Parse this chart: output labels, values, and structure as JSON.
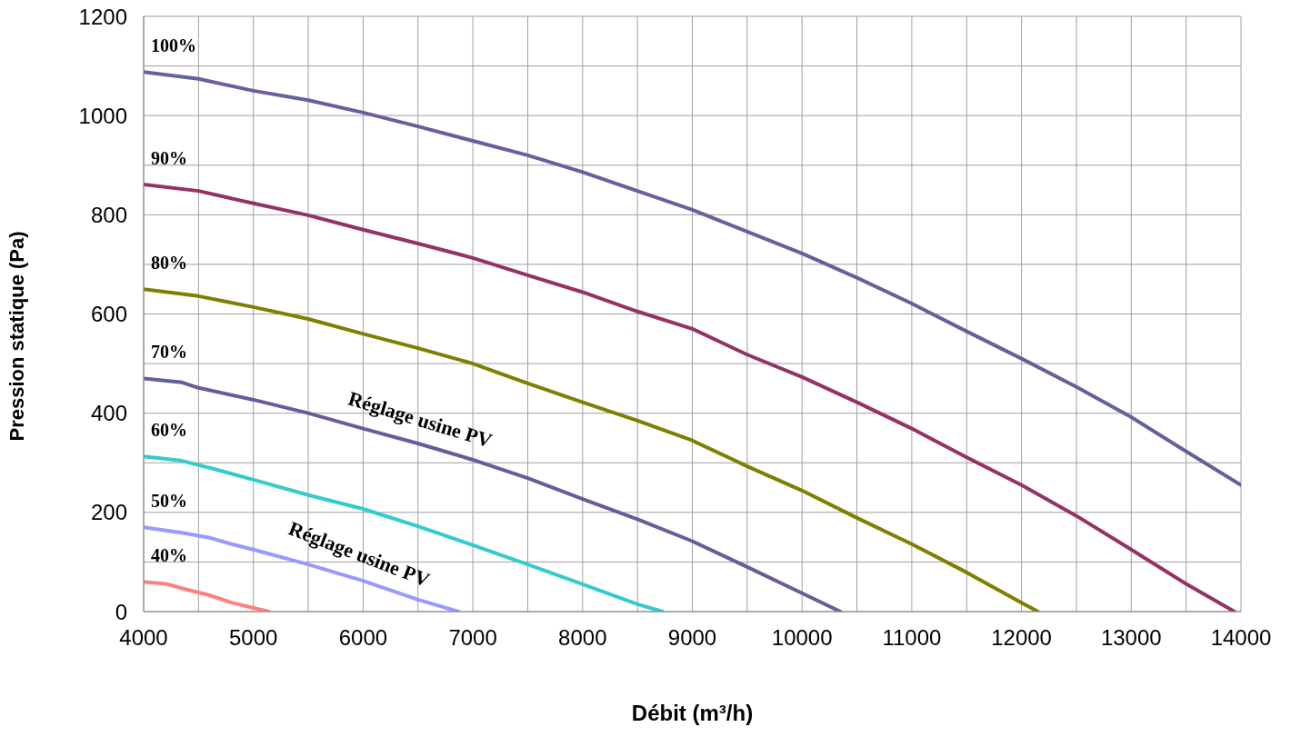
{
  "chart_data": {
    "type": "line",
    "xlabel": "Débit (m³/h)",
    "ylabel": "Pression statique (Pa)",
    "xlim": [
      4000,
      14000
    ],
    "ylim": [
      0,
      1200
    ],
    "xticks": [
      4000,
      {
        "value": 4500,
        "label": null
      },
      5000,
      {
        "value": 5500,
        "label": null
      },
      6000,
      {
        "value": 6500,
        "label": null
      },
      7000,
      {
        "value": 7500,
        "label": null
      },
      8000,
      {
        "value": 8500,
        "label": null
      },
      9000,
      {
        "value": 9500,
        "label": null
      },
      10000,
      {
        "value": 10500,
        "label": null
      },
      11000,
      {
        "value": 11500,
        "label": null
      },
      12000,
      {
        "value": 12500,
        "label": null
      },
      13000,
      {
        "value": 13500,
        "label": null
      },
      14000
    ],
    "yticks": [
      0,
      {
        "value": 100,
        "label": null
      },
      200,
      {
        "value": 300,
        "label": null
      },
      400,
      {
        "value": 500,
        "label": null
      },
      600,
      {
        "value": 700,
        "label": null
      },
      800,
      {
        "value": 900,
        "label": null
      },
      1000,
      {
        "value": 1100,
        "label": null
      },
      1200
    ],
    "grid": true,
    "legend": false,
    "marker": "none",
    "line_style": "solid",
    "series": [
      {
        "name": "100%",
        "color": "#62629c",
        "x": [
          4000,
          4500,
          5000,
          5500,
          6000,
          6500,
          7000,
          7500,
          8000,
          8500,
          9000,
          9500,
          10000,
          10500,
          11000,
          11500,
          12000,
          12500,
          13000,
          13500,
          14000
        ],
        "values": [
          1088,
          1074,
          1050,
          1031,
          1006,
          978,
          949,
          920,
          886,
          848,
          810,
          766,
          722,
          673,
          621,
          565,
          510,
          453,
          392,
          323,
          255
        ]
      },
      {
        "name": "90%",
        "color": "#953264",
        "x": [
          4000,
          4500,
          5000,
          5500,
          6000,
          6500,
          7000,
          7500,
          8000,
          8500,
          9000,
          9500,
          10000,
          10500,
          11000,
          11500,
          12000,
          12500,
          13000,
          13500,
          13940
        ],
        "values": [
          861,
          848,
          823,
          799,
          770,
          742,
          713,
          678,
          644,
          605,
          570,
          518,
          473,
          422,
          369,
          311,
          255,
          193,
          125,
          56,
          0
        ]
      },
      {
        "name": "80%",
        "color": "#7f7f00",
        "x": [
          4000,
          4500,
          5000,
          5500,
          6000,
          6500,
          7000,
          7500,
          8000,
          8500,
          9000,
          9500,
          10000,
          10500,
          11000,
          11500,
          12000,
          12150
        ],
        "values": [
          650,
          636,
          614,
          590,
          560,
          531,
          500,
          460,
          422,
          385,
          345,
          293,
          244,
          189,
          136,
          79,
          18,
          0
        ]
      },
      {
        "name": "70%",
        "color": "#60609a",
        "x": [
          4000,
          4350,
          4500,
          5000,
          5500,
          6000,
          6500,
          7000,
          7500,
          8000,
          8500,
          9000,
          9500,
          10000,
          10350
        ],
        "values": [
          470,
          462,
          451,
          427,
          400,
          369,
          339,
          306,
          269,
          227,
          186,
          142,
          90,
          37,
          0
        ]
      },
      {
        "name": "60%",
        "color": "#33cccc",
        "x": [
          4000,
          4350,
          4600,
          5000,
          5500,
          6000,
          6500,
          7000,
          7500,
          8000,
          8500,
          8730
        ],
        "values": [
          313,
          304,
          290,
          266,
          235,
          207,
          172,
          134,
          95,
          55,
          15,
          0
        ]
      },
      {
        "name": "50%",
        "color": "#9999ff",
        "x": [
          4000,
          4350,
          4600,
          4800,
          5000,
          5500,
          6000,
          6500,
          6870
        ],
        "values": [
          170,
          159,
          149,
          136,
          125,
          95,
          62,
          24,
          0
        ]
      },
      {
        "name": "40%",
        "color": "#ff7f7f",
        "x": [
          4000,
          4200,
          4400,
          4600,
          4800,
          5140
        ],
        "values": [
          60,
          56,
          44,
          33,
          18,
          0
        ]
      }
    ],
    "annotations": [
      "Réglage usine PV",
      "Réglage usine PV"
    ]
  }
}
